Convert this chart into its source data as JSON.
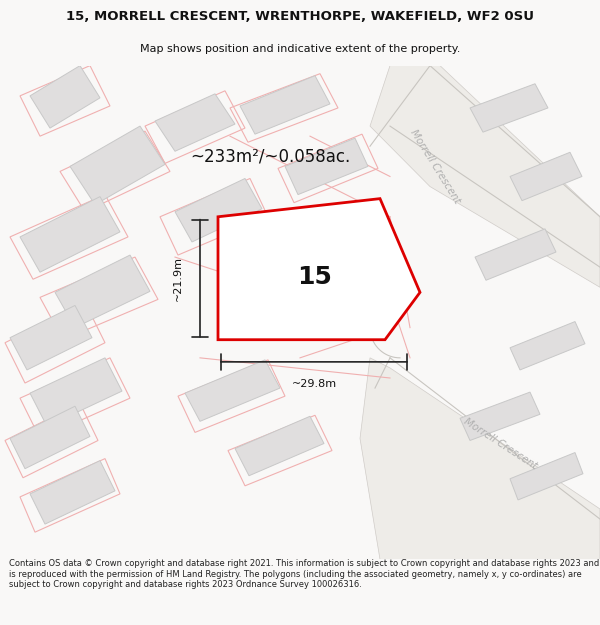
{
  "title_line1": "15, MORRELL CRESCENT, WRENTHORPE, WAKEFIELD, WF2 0SU",
  "title_line2": "Map shows position and indicative extent of the property.",
  "footer_text": "Contains OS data © Crown copyright and database right 2021. This information is subject to Crown copyright and database rights 2023 and is reproduced with the permission of HM Land Registry. The polygons (including the associated geometry, namely x, y co-ordinates) are subject to Crown copyright and database rights 2023 Ordnance Survey 100026316.",
  "area_label": "~233m²/~0.058ac.",
  "plot_number": "15",
  "dim_width_label": "~29.8m",
  "dim_height_label": "~21.9m",
  "road_label_upper": "Morrell Crescent",
  "road_label_lower": "Morrell Crescent",
  "bg_color": "#f9f8f7",
  "map_bg": "#f9f8f7",
  "building_color": "#e0dede",
  "building_edge_color": "#c8c8c8",
  "plot_edge_color": "#dd0000",
  "faded_line_color": "#f0b0b0",
  "dim_line_color": "#222222",
  "road_label_color": "#b0b0b0",
  "title_color": "#111111",
  "footer_color": "#222222",
  "area_label_color": "#111111",
  "plot_number_color": "#111111",
  "dim_label_color": "#111111",
  "road_text_rotation_upper": -58,
  "road_text_rotation_lower": -33
}
